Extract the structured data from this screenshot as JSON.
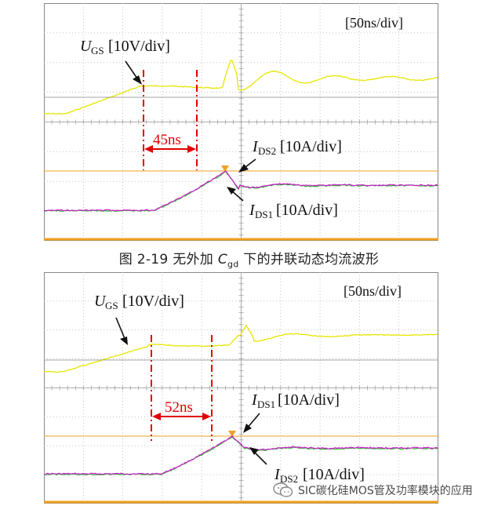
{
  "figure1": {
    "timebase": "[50ns/div]",
    "ugs_main": "U",
    "ugs_sub": "GS",
    "ugs_scale": "[10V/div]",
    "delay": "45ns",
    "upper_current_main": "I",
    "upper_current_sub": "DS2",
    "upper_current_scale": "[10A/div]",
    "lower_current_main": "I",
    "lower_current_sub": "DS1",
    "lower_current_scale": "[10A/div]"
  },
  "caption": {
    "pre": "图 2-19  无外加 ",
    "c": "C",
    "sub": "gd",
    "post": " 下的并联动态均流波形"
  },
  "figure2": {
    "timebase": "[50ns/div]",
    "ugs_main": "U",
    "ugs_sub": "GS",
    "ugs_scale": "[10V/div]",
    "delay": "52ns",
    "upper_current_main": "I",
    "upper_current_sub": "DS1",
    "upper_current_scale": "[10A/div]",
    "lower_current_main": "I",
    "lower_current_sub": "DS2",
    "lower_current_scale": "[10A/div]"
  },
  "watermark": {
    "text": "SIC碳化硅MOS管及功率模块的应用",
    "icon": "wechat-icon"
  },
  "colors": {
    "ugs": "#e6e600",
    "ids_a": "#d020d0",
    "ids_b": "#20b020",
    "trigger": "#f0a020",
    "marker": "#e00000",
    "grid": "#b4b4b4"
  }
}
